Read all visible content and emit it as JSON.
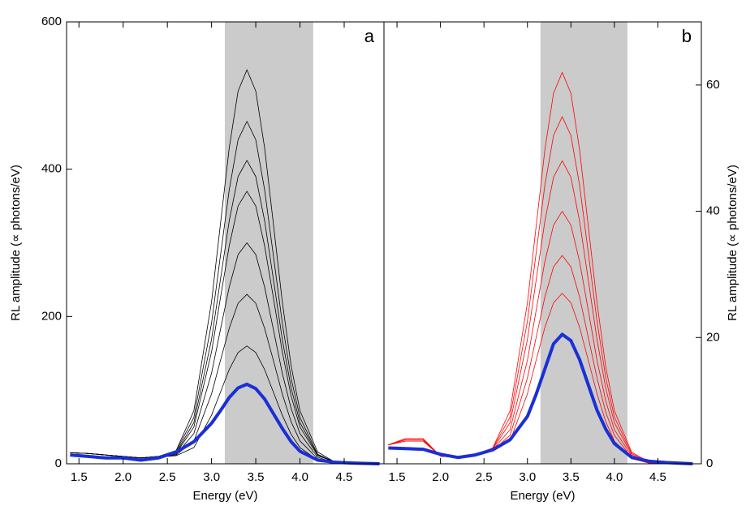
{
  "chart_data": [
    {
      "type": "line",
      "panel_label": "a",
      "x_label": "Energy (eV)",
      "y_label": "RL amplitude (∝ photons/eV)",
      "xlim": [
        1.36,
        4.95
      ],
      "ylim": [
        0,
        600
      ],
      "xticks": [
        1.5,
        {
          "value": 2,
          "label": "2.0"
        },
        2.5,
        {
          "value": 3,
          "label": "3.0"
        },
        3.5,
        {
          "value": 4,
          "label": "4.0"
        },
        4.5
      ],
      "yticks": [
        0,
        200,
        400,
        600
      ],
      "shaded_region": [
        3.15,
        4.15
      ],
      "x": [
        1.4,
        1.6,
        1.8,
        2.0,
        2.2,
        2.4,
        2.6,
        2.8,
        3.0,
        3.1,
        3.2,
        3.3,
        3.4,
        3.5,
        3.6,
        3.7,
        3.8,
        3.9,
        4.0,
        4.2,
        4.4,
        4.6,
        4.9
      ],
      "series": [
        {
          "color": "#000000",
          "values": [
            15,
            14,
            12,
            10,
            8,
            10,
            18,
            72,
            220,
            325,
            429,
            506,
            535,
            506,
            429,
            325,
            220,
            133,
            72,
            16,
            2,
            1,
            0
          ]
        },
        {
          "color": "#000000",
          "values": [
            15,
            14,
            12,
            10,
            8,
            10,
            17,
            63,
            191,
            282,
            372,
            440,
            465,
            440,
            372,
            282,
            191,
            116,
            63,
            13,
            2,
            1,
            0
          ]
        },
        {
          "color": "#000000",
          "values": [
            15,
            14,
            12,
            10,
            8,
            10,
            15,
            56,
            169,
            250,
            330,
            390,
            412,
            390,
            330,
            250,
            169,
            103,
            56,
            12,
            2,
            1,
            0
          ]
        },
        {
          "color": "#000000",
          "values": [
            15,
            14,
            12,
            10,
            8,
            10,
            14,
            50,
            152,
            225,
            296,
            350,
            370,
            350,
            296,
            225,
            152,
            92,
            50,
            11,
            2,
            1,
            0
          ]
        },
        {
          "color": "#000000",
          "values": [
            15,
            14,
            12,
            10,
            8,
            9,
            13,
            41,
            123,
            182,
            240,
            284,
            300,
            284,
            240,
            182,
            123,
            75,
            41,
            9,
            1,
            0,
            0
          ]
        },
        {
          "color": "#000000",
          "values": [
            15,
            14,
            12,
            10,
            8,
            9,
            12,
            31,
            95,
            140,
            184,
            218,
            230,
            218,
            184,
            140,
            95,
            57,
            31,
            7,
            1,
            0,
            0
          ]
        },
        {
          "color": "#000000",
          "values": [
            15,
            14,
            12,
            10,
            8,
            9,
            11,
            22,
            66,
            97,
            128,
            151,
            160,
            151,
            128,
            97,
            66,
            40,
            22,
            5,
            1,
            0,
            0
          ]
        },
        {
          "color": "#1a2fd6",
          "values": [
            12,
            10,
            8,
            8,
            5,
            8,
            16,
            30,
            55,
            72,
            90,
            103,
            108,
            102,
            88,
            68,
            48,
            30,
            17,
            5,
            2,
            1,
            0
          ]
        }
      ]
    },
    {
      "type": "line",
      "panel_label": "b",
      "x_label": "Energy (eV)",
      "y2_label": "RL amplitude (∝ photons/eV)",
      "xlim": [
        1.35,
        5.0
      ],
      "y2lim": [
        0,
        70
      ],
      "xticks": [
        1.5,
        {
          "value": 2,
          "label": "2.0"
        },
        2.5,
        {
          "value": 3,
          "label": "3.0"
        },
        3.5,
        {
          "value": 4,
          "label": "4.0"
        },
        4.5
      ],
      "y2ticks": [
        0,
        20,
        40,
        60
      ],
      "shaded_region": [
        3.15,
        4.15
      ],
      "x": [
        1.4,
        1.6,
        1.8,
        2.0,
        2.2,
        2.4,
        2.6,
        2.8,
        3.0,
        3.1,
        3.2,
        3.3,
        3.4,
        3.5,
        3.6,
        3.7,
        3.8,
        3.9,
        4.0,
        4.2,
        4.4,
        4.6,
        4.9
      ],
      "series": [
        {
          "color": "#ff0000",
          "axis": "y2",
          "values": [
            3,
            4,
            4,
            1.2,
            1,
            1.5,
            2.5,
            8.4,
            25.5,
            37.6,
            49.7,
            58.7,
            62,
            58.7,
            49.7,
            37.6,
            25.5,
            15.4,
            8.4,
            1.8,
            0.3,
            0.1,
            0
          ]
        },
        {
          "color": "#ff0000",
          "axis": "y2",
          "values": [
            3,
            4,
            4,
            1.2,
            1,
            1.5,
            2.4,
            7.4,
            22.6,
            33.4,
            44.1,
            52,
            55,
            52,
            44.1,
            33.4,
            22.6,
            13.7,
            7.4,
            1.6,
            0.2,
            0.1,
            0
          ]
        },
        {
          "color": "#ff0000",
          "axis": "y2",
          "values": [
            3,
            3.8,
            3.8,
            1.2,
            1,
            1.5,
            2.3,
            6.5,
            19.7,
            29.1,
            38.4,
            45.4,
            48,
            45.4,
            38.4,
            29.1,
            19.7,
            12,
            6.5,
            1.4,
            0.2,
            0.1,
            0
          ]
        },
        {
          "color": "#ff0000",
          "axis": "y2",
          "values": [
            3,
            3.8,
            3.8,
            1.2,
            1,
            1.5,
            2.2,
            5.4,
            16.4,
            24.3,
            32,
            37.8,
            40,
            37.8,
            32,
            24.3,
            16.4,
            10,
            5.4,
            1.2,
            0.2,
            0.1,
            0
          ]
        },
        {
          "color": "#ff0000",
          "axis": "y2",
          "values": [
            3,
            3.6,
            3.6,
            1.2,
            1,
            1.5,
            2.1,
            4.5,
            13.6,
            20,
            26.4,
            31.2,
            33,
            31.2,
            26.4,
            20,
            13.6,
            8.2,
            4.5,
            1,
            0.1,
            0,
            0
          ]
        },
        {
          "color": "#ff0000",
          "axis": "y2",
          "values": [
            3,
            3.6,
            3.6,
            1.2,
            1,
            1.5,
            2,
            3.6,
            11.1,
            16.4,
            21.6,
            25.5,
            27,
            25.5,
            21.6,
            16.4,
            11.1,
            6.7,
            3.6,
            0.8,
            0.1,
            0,
            0
          ]
        },
        {
          "color": "#1a2fd6",
          "axis": "y2",
          "values": [
            2.5,
            2.4,
            2.3,
            1.5,
            1,
            1.4,
            2.2,
            3.8,
            7.5,
            11,
            15,
            19,
            20.5,
            19.5,
            16.5,
            12.5,
            8.5,
            5.5,
            3.2,
            1,
            0.4,
            0.2,
            0
          ]
        }
      ]
    }
  ]
}
